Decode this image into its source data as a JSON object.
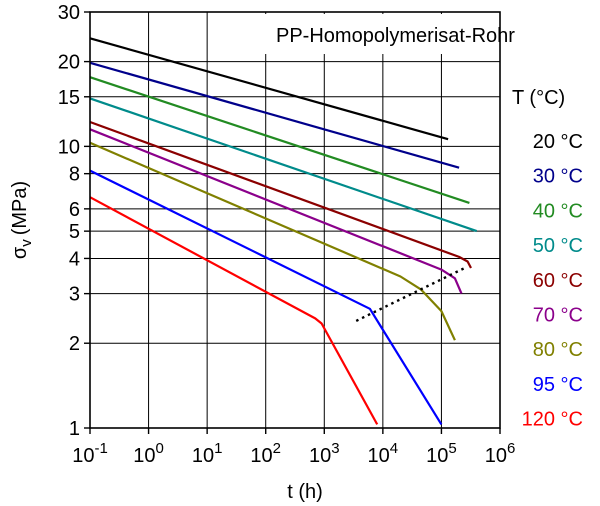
{
  "chart_data": {
    "type": "line",
    "title": "PP-Homopolymerisat-Rohr",
    "xlabel": "t (h)",
    "ylabel": "σ",
    "ylabel_sub": "v",
    "ylabel_unit": "(MPa)",
    "x_scale": "log",
    "y_scale": "log",
    "xlim": [
      0.1,
      1000000
    ],
    "ylim": [
      1,
      30
    ],
    "grid": true,
    "x_ticks": [
      {
        "value": 0.1,
        "base": "10",
        "exp": "-1"
      },
      {
        "value": 1,
        "base": "10",
        "exp": "0"
      },
      {
        "value": 10,
        "base": "10",
        "exp": "1"
      },
      {
        "value": 100,
        "base": "10",
        "exp": "2"
      },
      {
        "value": 1000,
        "base": "10",
        "exp": "3"
      },
      {
        "value": 10000,
        "base": "10",
        "exp": "4"
      },
      {
        "value": 100000,
        "base": "10",
        "exp": "5"
      },
      {
        "value": 1000000,
        "base": "10",
        "exp": "6"
      }
    ],
    "y_ticks": [
      {
        "value": 1,
        "label": "1"
      },
      {
        "value": 2,
        "label": "2"
      },
      {
        "value": 3,
        "label": "3"
      },
      {
        "value": 4,
        "label": "4"
      },
      {
        "value": 5,
        "label": "5"
      },
      {
        "value": 6,
        "label": "6"
      },
      {
        "value": 8,
        "label": "8"
      },
      {
        "value": 10,
        "label": "10"
      },
      {
        "value": 15,
        "label": "15"
      },
      {
        "value": 20,
        "label": "20"
      },
      {
        "value": 30,
        "label": "30"
      }
    ],
    "legend_title": "T (°C)",
    "legend_position": "right",
    "series": [
      {
        "name": "20 °C",
        "color": "#000000",
        "points": [
          [
            0.1,
            24.2
          ],
          [
            130000,
            10.6
          ]
        ]
      },
      {
        "name": "30 °C",
        "color": "#00008b",
        "points": [
          [
            0.1,
            19.8
          ],
          [
            200000,
            8.4
          ]
        ]
      },
      {
        "name": "40 °C",
        "color": "#228b22",
        "points": [
          [
            0.1,
            17.6
          ],
          [
            300000,
            6.3
          ]
        ]
      },
      {
        "name": "50 °C",
        "color": "#008b8b",
        "points": [
          [
            0.1,
            14.8
          ],
          [
            400000,
            5.0
          ]
        ]
      },
      {
        "name": "60 °C",
        "color": "#8b0000",
        "points": [
          [
            0.1,
            12.2
          ],
          [
            200000,
            4.05
          ],
          [
            280000,
            3.9
          ],
          [
            320000,
            3.7
          ]
        ]
      },
      {
        "name": "70 °C",
        "color": "#8b008b",
        "points": [
          [
            0.1,
            11.5
          ],
          [
            100000,
            3.65
          ],
          [
            170000,
            3.4
          ],
          [
            220000,
            3.0
          ]
        ]
      },
      {
        "name": "80 °C",
        "color": "#808000",
        "points": [
          [
            0.1,
            10.3
          ],
          [
            20000,
            3.45
          ],
          [
            45000,
            3.1
          ],
          [
            100000,
            2.6
          ],
          [
            170000,
            2.05
          ]
        ]
      },
      {
        "name": "95 °C",
        "color": "#0000ff",
        "points": [
          [
            0.1,
            8.2
          ],
          [
            6000,
            2.65
          ],
          [
            100000,
            1.03
          ]
        ]
      },
      {
        "name": "120 °C",
        "color": "#ff0000",
        "points": [
          [
            0.1,
            6.6
          ],
          [
            700,
            2.45
          ],
          [
            900,
            2.35
          ],
          [
            8000,
            1.03
          ]
        ]
      }
    ],
    "annotations": [
      {
        "type": "dotted-line",
        "color": "#000000",
        "points": [
          [
            3500,
            2.4
          ],
          [
            250000,
            3.7
          ]
        ]
      }
    ]
  }
}
